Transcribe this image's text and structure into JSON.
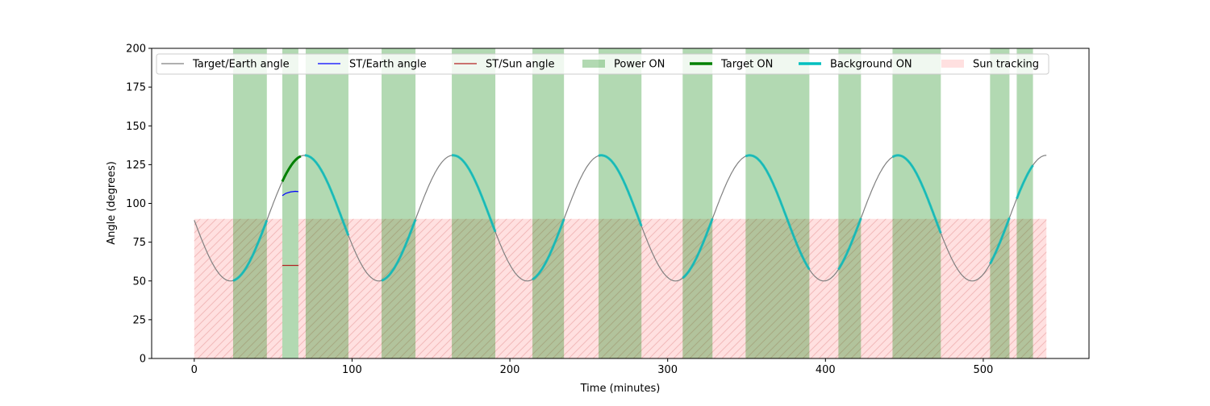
{
  "chart_data": {
    "type": "line",
    "title": "",
    "xlabel": "Time (minutes)",
    "ylabel": "Angle (degrees)",
    "xlim": [
      -27,
      567
    ],
    "ylim": [
      0,
      200
    ],
    "xticks": [
      0,
      100,
      200,
      300,
      400,
      500
    ],
    "yticks": [
      0,
      25,
      50,
      75,
      100,
      125,
      150,
      175,
      200
    ],
    "grid": false,
    "legend_position": "top",
    "legend": [
      "Target/Earth angle",
      "ST/Earth angle",
      "ST/Sun angle",
      "Power ON",
      "Target ON",
      "Background ON",
      "Sun tracking"
    ],
    "colors": {
      "target_earth": "#808080",
      "st_earth": "#0000ff",
      "st_sun": "#b22222",
      "power_on": "#008000",
      "target_on": "#008000",
      "background_on": "#00bfbf",
      "sun_tracking": "#ff9999"
    },
    "target_earth_angle": {
      "x_range": [
        0,
        540
      ],
      "mean": 90.5,
      "amplitude": 40.5,
      "period_min": 94,
      "first_minimum_min": 23
    },
    "st_earth_angle": {
      "x": [
        55.8,
        58,
        61,
        64,
        66
      ],
      "y": [
        105,
        106.5,
        107.4,
        107.8,
        107.6
      ]
    },
    "st_sun_angle": {
      "x": [
        55.8,
        66
      ],
      "y": [
        60,
        60
      ]
    },
    "power_on": [
      [
        24.6,
        46.0
      ],
      [
        55.8,
        66.0
      ],
      [
        70.6,
        97.7
      ],
      [
        118.7,
        140.2
      ],
      [
        163.2,
        190.8
      ],
      [
        214.3,
        234.3
      ],
      [
        256.2,
        283.4
      ],
      [
        309.5,
        328.4
      ],
      [
        349.4,
        389.8
      ],
      [
        408.2,
        422.5
      ],
      [
        442.5,
        473.1
      ],
      [
        504.3,
        516.6
      ],
      [
        521.2,
        531.5
      ]
    ],
    "target_on": [
      [
        55.8,
        67.5
      ]
    ],
    "background_on": [
      [
        24.6,
        46.0
      ],
      [
        70.0,
        97.7
      ],
      [
        118.7,
        140.2
      ],
      [
        163.2,
        190.8
      ],
      [
        214.3,
        234.3
      ],
      [
        256.2,
        283.4
      ],
      [
        309.5,
        328.4
      ],
      [
        349.4,
        389.8
      ],
      [
        408.2,
        422.5
      ],
      [
        442.5,
        473.1
      ],
      [
        504.3,
        516.6
      ],
      [
        521.2,
        531.5
      ]
    ],
    "sun_tracking": {
      "intervals": [
        [
          0,
          55.8
        ],
        [
          66,
          540
        ]
      ],
      "y_range": [
        0,
        90
      ]
    }
  }
}
